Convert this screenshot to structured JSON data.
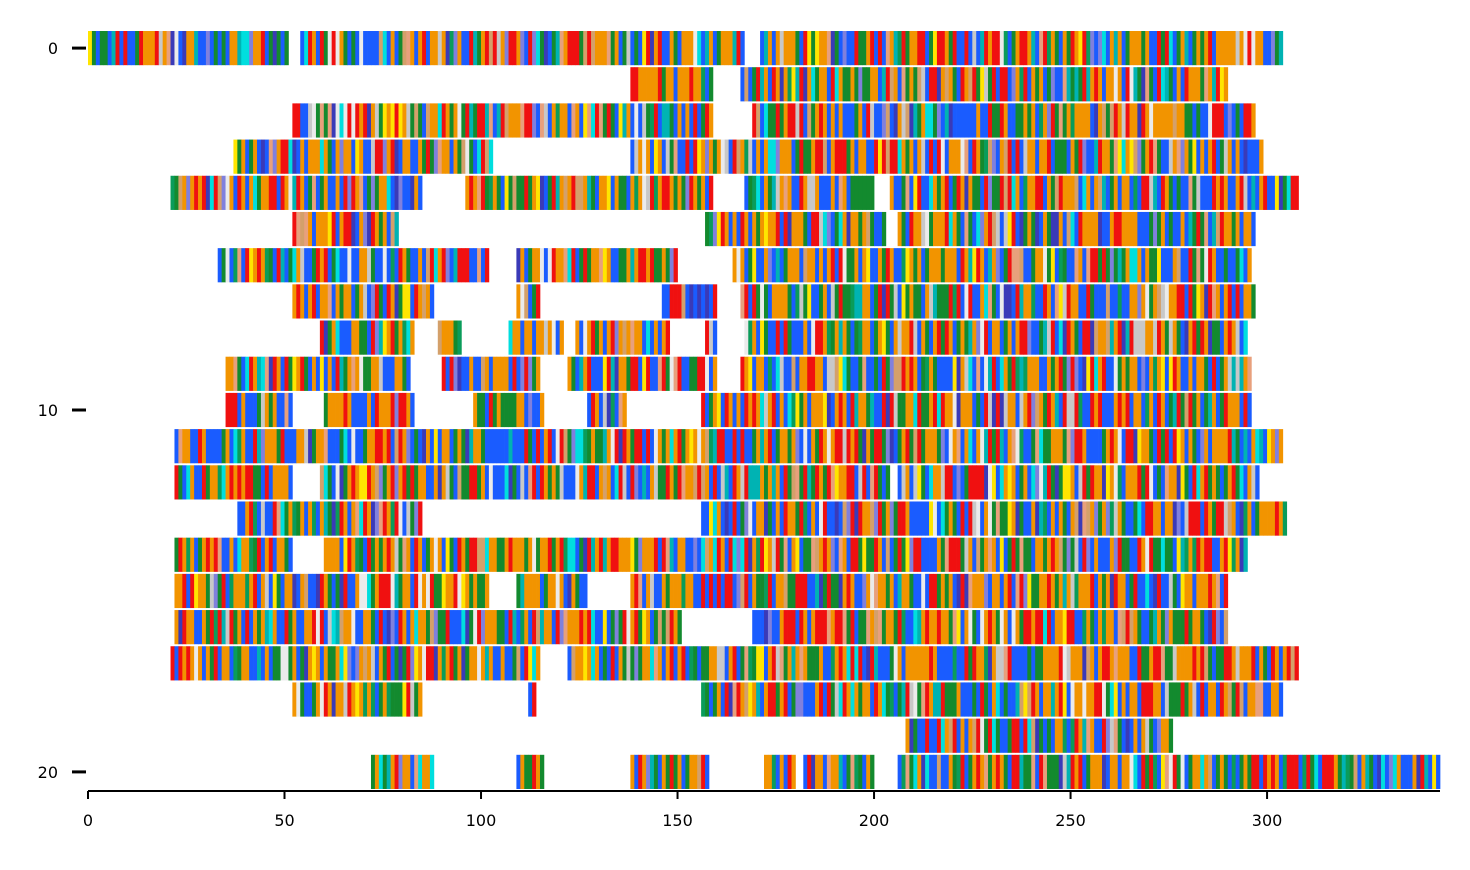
{
  "chart_data": {
    "type": "heatmap",
    "description_kind": "multiple sequence alignment colored by residue",
    "title": "",
    "xlabel": "",
    "ylabel": "",
    "x_ticks": [
      "0",
      "50",
      "100",
      "150",
      "200",
      "250",
      "300"
    ],
    "y_ticks": [
      "0",
      "10",
      "20"
    ],
    "xlim": [
      0,
      344
    ],
    "ylim": [
      20.5,
      -0.5
    ],
    "num_sequences": 21,
    "alignment_length": 344,
    "palette": [
      "#f29400",
      "#1a5cff",
      "#f01010",
      "#138a2e",
      "#8080dd",
      "#00b3b3",
      "#e8a07c",
      "#ffe500",
      "#00dede",
      "#c8c8c8",
      "#0a9c5a",
      "#3a3ab8",
      "#d4a06a",
      "#ebebeb"
    ],
    "background_color": "#ffffff",
    "rows": [
      {
        "index": 0,
        "segments": [
          [
            0,
            51
          ],
          [
            54,
            167
          ],
          [
            171,
            304
          ]
        ]
      },
      {
        "index": 1,
        "segments": [
          [
            138,
            159
          ],
          [
            166,
            290
          ]
        ]
      },
      {
        "index": 2,
        "segments": [
          [
            52,
            159
          ],
          [
            169,
            297
          ]
        ]
      },
      {
        "index": 3,
        "segments": [
          [
            37,
            103
          ],
          [
            138,
            299
          ]
        ]
      },
      {
        "index": 4,
        "segments": [
          [
            21,
            85
          ],
          [
            96,
            159
          ],
          [
            167,
            200
          ],
          [
            204,
            308
          ]
        ]
      },
      {
        "index": 5,
        "segments": [
          [
            52,
            79
          ],
          [
            157,
            203
          ],
          [
            206,
            297
          ]
        ]
      },
      {
        "index": 6,
        "segments": [
          [
            33,
            102
          ],
          [
            109,
            150
          ],
          [
            164,
            296
          ]
        ]
      },
      {
        "index": 7,
        "segments": [
          [
            52,
            88
          ],
          [
            109,
            115
          ],
          [
            146,
            160
          ],
          [
            166,
            297
          ]
        ]
      },
      {
        "index": 8,
        "segments": [
          [
            59,
            83
          ],
          [
            89,
            95
          ],
          [
            107,
            121
          ],
          [
            124,
            148
          ],
          [
            157,
            160
          ],
          [
            167,
            295
          ]
        ]
      },
      {
        "index": 9,
        "segments": [
          [
            35,
            82
          ],
          [
            90,
            115
          ],
          [
            122,
            160
          ],
          [
            166,
            296
          ]
        ]
      },
      {
        "index": 10,
        "segments": [
          [
            35,
            52
          ],
          [
            60,
            83
          ],
          [
            98,
            116
          ],
          [
            127,
            137
          ],
          [
            156,
            296
          ]
        ]
      },
      {
        "index": 11,
        "segments": [
          [
            22,
            304
          ]
        ]
      },
      {
        "index": 12,
        "segments": [
          [
            22,
            52
          ],
          [
            59,
            204
          ],
          [
            206,
            298
          ]
        ]
      },
      {
        "index": 13,
        "segments": [
          [
            38,
            85
          ],
          [
            156,
            305
          ]
        ]
      },
      {
        "index": 14,
        "segments": [
          [
            22,
            52
          ],
          [
            60,
            295
          ]
        ]
      },
      {
        "index": 15,
        "segments": [
          [
            22,
            102
          ],
          [
            109,
            127
          ],
          [
            138,
            290
          ]
        ]
      },
      {
        "index": 16,
        "segments": [
          [
            22,
            151
          ],
          [
            169,
            290
          ]
        ]
      },
      {
        "index": 17,
        "segments": [
          [
            21,
            115
          ],
          [
            122,
            308
          ]
        ]
      },
      {
        "index": 18,
        "segments": [
          [
            52,
            85
          ],
          [
            112,
            114
          ],
          [
            156,
            304
          ]
        ]
      },
      {
        "index": 19,
        "segments": [
          [
            208,
            276
          ]
        ]
      },
      {
        "index": 20,
        "segments": [
          [
            72,
            88
          ],
          [
            109,
            116
          ],
          [
            138,
            158
          ],
          [
            172,
            180
          ],
          [
            182,
            200
          ],
          [
            206,
            344
          ]
        ]
      }
    ]
  }
}
